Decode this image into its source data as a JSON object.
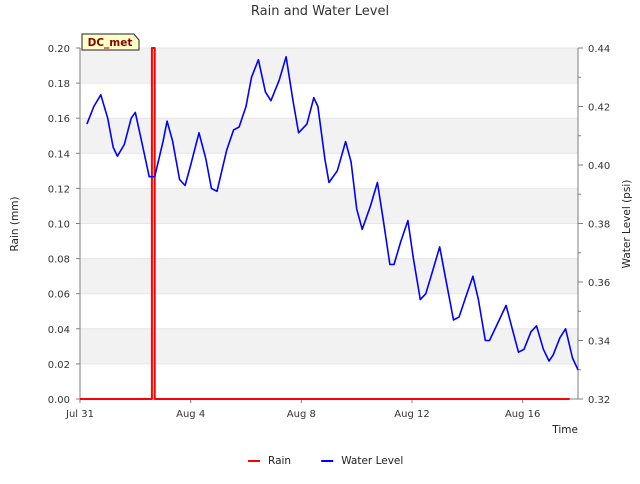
{
  "chart_data": {
    "type": "line",
    "title": "Rain and Water Level",
    "xlabel": "Time",
    "ylabel_left": "Rain (mm)",
    "ylabel_right": "Water Level (psi)",
    "x_domain": [
      "Jul 31",
      "Aug 18"
    ],
    "x_ticks": [
      "Jul 31",
      "Aug 4",
      "Aug 8",
      "Aug 12",
      "Aug 16"
    ],
    "ylim_left": [
      0,
      0.2
    ],
    "yticks_left": [
      "0.00",
      "0.02",
      "0.04",
      "0.06",
      "0.08",
      "0.10",
      "0.12",
      "0.14",
      "0.16",
      "0.18",
      "0.20"
    ],
    "ylim_right": [
      0.32,
      0.44
    ],
    "yticks_right": [
      "0.32",
      "0.34",
      "0.36",
      "0.38",
      "0.40",
      "0.42",
      "0.44"
    ],
    "grid": "horizontal bands",
    "legend_position": "bottom",
    "annotation": "DC_met",
    "series": [
      {
        "name": "Rain",
        "axis": "left",
        "color": "#ff0000",
        "points": [
          [
            "Jul 31",
            0
          ],
          [
            "Aug 2.6",
            0
          ],
          [
            "Aug 2.6",
            0.2
          ],
          [
            "Aug 2.7",
            0.2
          ],
          [
            "Aug 2.7",
            0
          ],
          [
            "Aug 17.7",
            0
          ]
        ]
      },
      {
        "name": "Water Level",
        "axis": "right",
        "color": "#0000ff",
        "points": [
          [
            "Jul 31.25",
            0.414
          ],
          [
            "Jul 31.5",
            0.42
          ],
          [
            "Jul 31.75",
            0.424
          ],
          [
            "Aug 1.0",
            0.416
          ],
          [
            "Aug 1.2",
            0.406
          ],
          [
            "Aug 1.35",
            0.403
          ],
          [
            "Aug 1.6",
            0.407
          ],
          [
            "Aug 1.85",
            0.416
          ],
          [
            "Aug 2.0",
            0.418
          ],
          [
            "Aug 2.25",
            0.407
          ],
          [
            "Aug 2.5",
            0.396
          ],
          [
            "Aug 2.7",
            0.396
          ],
          [
            "Aug 3.0",
            0.408
          ],
          [
            "Aug 3.15",
            0.415
          ],
          [
            "Aug 3.35",
            0.408
          ],
          [
            "Aug 3.6",
            0.395
          ],
          [
            "Aug 3.8",
            0.393
          ],
          [
            "Aug 4.0",
            0.4
          ],
          [
            "Aug 4.3",
            0.411
          ],
          [
            "Aug 4.55",
            0.402
          ],
          [
            "Aug 4.75",
            0.392
          ],
          [
            "Aug 4.95",
            0.391
          ],
          [
            "Aug 5.3",
            0.405
          ],
          [
            "Aug 5.55",
            0.412
          ],
          [
            "Aug 5.75",
            0.413
          ],
          [
            "Aug 6.0",
            0.42
          ],
          [
            "Aug 6.2",
            0.43
          ],
          [
            "Aug 6.45",
            0.436
          ],
          [
            "Aug 6.7",
            0.425
          ],
          [
            "Aug 6.9",
            0.422
          ],
          [
            "Aug 7.2",
            0.429
          ],
          [
            "Aug 7.45",
            0.437
          ],
          [
            "Aug 7.7",
            0.422
          ],
          [
            "Aug 7.9",
            0.411
          ],
          [
            "Aug 8.2",
            0.414
          ],
          [
            "Aug 8.45",
            0.423
          ],
          [
            "Aug 8.6",
            0.42
          ],
          [
            "Aug 8.85",
            0.402
          ],
          [
            "Aug 9.0",
            0.394
          ],
          [
            "Aug 9.3",
            0.398
          ],
          [
            "Aug 9.6",
            0.408
          ],
          [
            "Aug 9.8",
            0.401
          ],
          [
            "Aug 10.0",
            0.385
          ],
          [
            "Aug 10.2",
            0.378
          ],
          [
            "Aug 10.5",
            0.386
          ],
          [
            "Aug 10.75",
            0.394
          ],
          [
            "Aug 10.95",
            0.382
          ],
          [
            "Aug 11.2",
            0.366
          ],
          [
            "Aug 11.35",
            0.366
          ],
          [
            "Aug 11.6",
            0.374
          ],
          [
            "Aug 11.85",
            0.381
          ],
          [
            "Aug 12.05",
            0.368
          ],
          [
            "Aug 12.3",
            0.354
          ],
          [
            "Aug 12.5",
            0.356
          ],
          [
            "Aug 12.75",
            0.364
          ],
          [
            "Aug 13.0",
            0.372
          ],
          [
            "Aug 13.2",
            0.362
          ],
          [
            "Aug 13.5",
            0.347
          ],
          [
            "Aug 13.7",
            0.348
          ],
          [
            "Aug 13.95",
            0.355
          ],
          [
            "Aug 14.2",
            0.362
          ],
          [
            "Aug 14.4",
            0.354
          ],
          [
            "Aug 14.65",
            0.34
          ],
          [
            "Aug 14.8",
            0.34
          ],
          [
            "Aug 15.1",
            0.346
          ],
          [
            "Aug 15.4",
            0.352
          ],
          [
            "Aug 15.65",
            0.343
          ],
          [
            "Aug 15.85",
            0.336
          ],
          [
            "Aug 16.05",
            0.337
          ],
          [
            "Aug 16.3",
            0.343
          ],
          [
            "Aug 16.5",
            0.345
          ],
          [
            "Aug 16.75",
            0.337
          ],
          [
            "Aug 16.95",
            0.333
          ],
          [
            "Aug 17.1",
            0.335
          ],
          [
            "Aug 17.35",
            0.341
          ],
          [
            "Aug 17.55",
            0.344
          ],
          [
            "Aug 17.8",
            0.334
          ],
          [
            "Aug 17.95",
            0.331
          ],
          [
            "Aug 18.0",
            0.33
          ]
        ]
      }
    ]
  },
  "colors": {
    "axis": "#7f7f7f",
    "band": "#f2f2f2",
    "text": "#333333",
    "annotation_bg": "#ffffc8",
    "annotation_text": "#8b0000"
  }
}
